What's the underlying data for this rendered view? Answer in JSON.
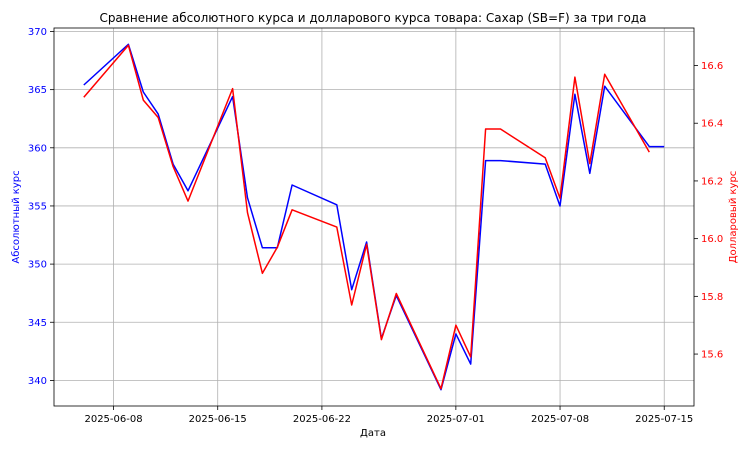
{
  "chart_data": {
    "type": "line",
    "title": "Сравнение абсолютного курса и долларового курса товара: Сахар (SB=F) за три года",
    "xlabel": "Дата",
    "ylabel_left": "Абсолютный курс",
    "ylabel_right": "Долларовый курс",
    "grid": true,
    "colors": {
      "left": "#0000ff",
      "right": "#ff0000",
      "grid": "#b0b0b0",
      "axis": "#000000"
    },
    "x_ticks": [
      "2025-06-08",
      "2025-06-15",
      "2025-06-22",
      "2025-07-01",
      "2025-07-08",
      "2025-07-15"
    ],
    "y_left_ticks": [
      340,
      345,
      350,
      355,
      360,
      365,
      370
    ],
    "y_right_ticks": [
      15.6,
      15.8,
      16.0,
      16.2,
      16.4,
      16.6
    ],
    "xlim": [
      "2025-06-04",
      "2025-07-17"
    ],
    "ylim_left": [
      337.8,
      370.3
    ],
    "ylim_right": [
      15.42,
      16.73
    ],
    "x": [
      "2025-06-06",
      "2025-06-09",
      "2025-06-10",
      "2025-06-11",
      "2025-06-12",
      "2025-06-13",
      "2025-06-16",
      "2025-06-17",
      "2025-06-18",
      "2025-06-19",
      "2025-06-20",
      "2025-06-23",
      "2025-06-24",
      "2025-06-25",
      "2025-06-26",
      "2025-06-27",
      "2025-06-30",
      "2025-07-01",
      "2025-07-02",
      "2025-07-03",
      "2025-07-04",
      "2025-07-07",
      "2025-07-08",
      "2025-07-09",
      "2025-07-10",
      "2025-07-11",
      "2025-07-14",
      "2025-07-15"
    ],
    "series": [
      {
        "axis": "left",
        "color": "#0000ff",
        "values": [
          365.4,
          368.9,
          364.8,
          362.9,
          358.6,
          356.3,
          364.4,
          355.7,
          351.4,
          351.4,
          356.8,
          355.1,
          347.8,
          351.9,
          343.6,
          347.3,
          339.2,
          344.0,
          341.4,
          358.9,
          358.9,
          358.6,
          355.0,
          364.6,
          357.8,
          365.3,
          360.1,
          360.1
        ]
      },
      {
        "axis": "right",
        "color": "#ff0000",
        "values": [
          16.49,
          16.67,
          16.48,
          16.42,
          16.25,
          16.13,
          16.52,
          16.09,
          15.88,
          15.97,
          16.1,
          16.04,
          15.77,
          15.98,
          15.65,
          15.81,
          15.48,
          15.7,
          15.59,
          16.38,
          16.38,
          16.28,
          16.14,
          16.56,
          16.26,
          16.57,
          16.3,
          null
        ]
      }
    ]
  }
}
